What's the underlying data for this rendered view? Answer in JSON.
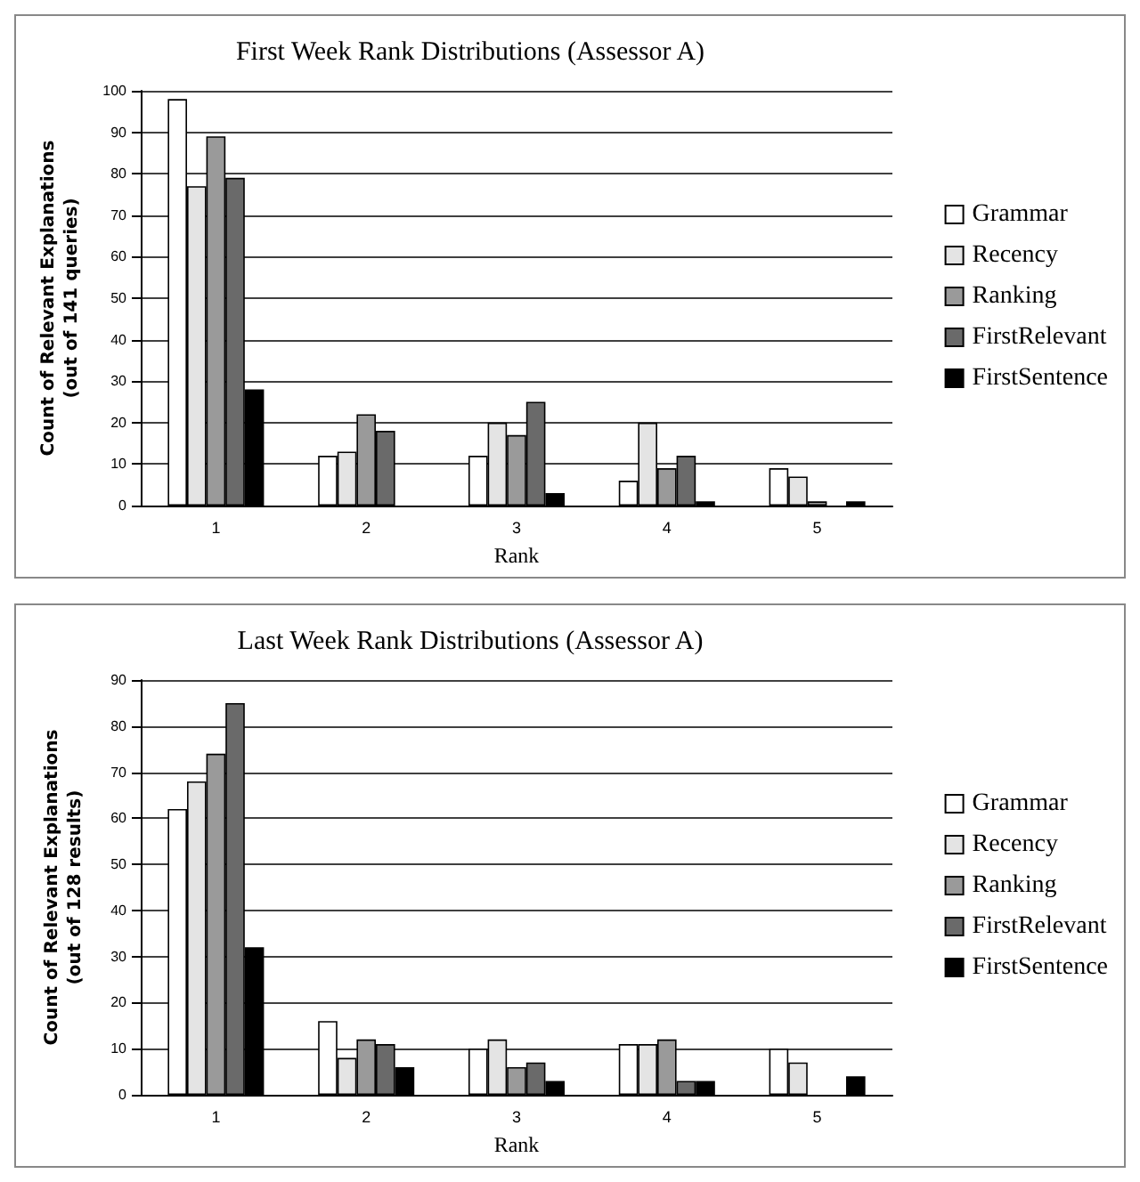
{
  "chart_data": [
    {
      "type": "bar",
      "title": "First Week Rank Distributions (Assessor A)",
      "xlabel": "Rank",
      "ylabel": "Count of Relevant Explanations\n(out of 141 queries)",
      "categories": [
        "1",
        "2",
        "3",
        "4",
        "5"
      ],
      "ylim": [
        0,
        100
      ],
      "yticks": [
        0,
        10,
        20,
        30,
        40,
        50,
        60,
        70,
        80,
        90,
        100
      ],
      "grid": "y",
      "legend": "right",
      "series": [
        {
          "name": "Grammar",
          "color": "#ffffff",
          "values": [
            98,
            12,
            12,
            6,
            9
          ]
        },
        {
          "name": "Recency",
          "color": "#e4e4e4",
          "values": [
            77,
            13,
            20,
            20,
            7
          ]
        },
        {
          "name": "Ranking",
          "color": "#9a9a9a",
          "values": [
            89,
            22,
            17,
            9,
            1
          ]
        },
        {
          "name": "FirstRelevant",
          "color": "#6a6a6a",
          "values": [
            79,
            18,
            25,
            12,
            0
          ]
        },
        {
          "name": "FirstSentence",
          "color": "#000000",
          "values": [
            28,
            0,
            3,
            1,
            1
          ]
        }
      ]
    },
    {
      "type": "bar",
      "title": "Last Week Rank Distributions (Assessor A)",
      "xlabel": "Rank",
      "ylabel": "Count of Relevant Explanations\n(out of 128 results)",
      "categories": [
        "1",
        "2",
        "3",
        "4",
        "5"
      ],
      "ylim": [
        0,
        90
      ],
      "yticks": [
        0,
        10,
        20,
        30,
        40,
        50,
        60,
        70,
        80,
        90
      ],
      "grid": "y",
      "legend": "right",
      "series": [
        {
          "name": "Grammar",
          "color": "#ffffff",
          "values": [
            62,
            16,
            10,
            11,
            10
          ]
        },
        {
          "name": "Recency",
          "color": "#e4e4e4",
          "values": [
            68,
            8,
            12,
            11,
            7
          ]
        },
        {
          "name": "Ranking",
          "color": "#9a9a9a",
          "values": [
            74,
            12,
            6,
            12,
            0
          ]
        },
        {
          "name": "FirstRelevant",
          "color": "#6a6a6a",
          "values": [
            85,
            11,
            7,
            3,
            0
          ]
        },
        {
          "name": "FirstSentence",
          "color": "#000000",
          "values": [
            32,
            6,
            3,
            3,
            4
          ]
        }
      ]
    }
  ]
}
